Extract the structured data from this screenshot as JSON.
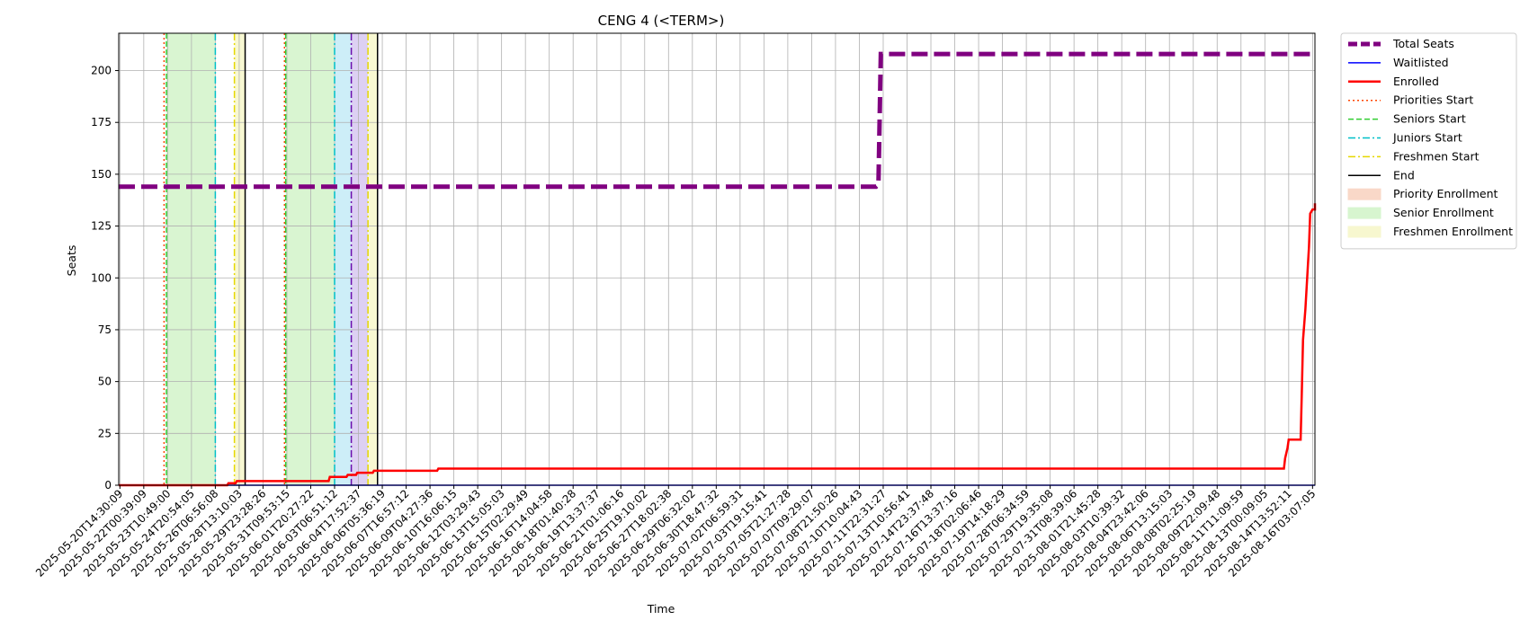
{
  "chart_data": {
    "type": "line",
    "title": "CENG 4 (<TERM>)",
    "xlabel": "Time",
    "ylabel": "Seats",
    "ylim": [
      0,
      218
    ],
    "yticks": [
      0,
      25,
      50,
      75,
      100,
      125,
      150,
      175,
      200
    ],
    "grid": true,
    "legend_position": "outside-right-top",
    "xticks": [
      "2025-05-20T14:30:09",
      "2025-05-22T00:39:09",
      "2025-05-23T10:49:00",
      "2025-05-24T20:54:05",
      "2025-05-26T06:56:08",
      "2025-05-28T13:10:03",
      "2025-05-29T23:28:26",
      "2025-05-31T09:53:15",
      "2025-06-01T20:27:22",
      "2025-06-03T06:51:12",
      "2025-06-04T17:52:37",
      "2025-06-06T05:36:19",
      "2025-06-07T16:57:12",
      "2025-06-09T04:27:36",
      "2025-06-10T16:06:15",
      "2025-06-12T03:29:43",
      "2025-06-13T15:05:03",
      "2025-06-15T02:29:49",
      "2025-06-16T14:04:58",
      "2025-06-18T01:40:28",
      "2025-06-19T13:37:37",
      "2025-06-21T01:06:16",
      "2025-06-25T19:10:02",
      "2025-06-27T18:02:38",
      "2025-06-29T06:32:02",
      "2025-06-30T18:47:32",
      "2025-07-02T06:59:31",
      "2025-07-03T19:15:41",
      "2025-07-05T21:27:28",
      "2025-07-07T09:29:07",
      "2025-07-08T21:50:26",
      "2025-07-10T10:04:43",
      "2025-07-11T22:31:27",
      "2025-07-13T10:56:41",
      "2025-07-14T23:37:48",
      "2025-07-16T13:37:16",
      "2025-07-18T02:06:46",
      "2025-07-19T14:18:29",
      "2025-07-28T06:34:59",
      "2025-07-29T19:35:08",
      "2025-07-31T08:39:06",
      "2025-08-01T21:45:28",
      "2025-08-03T10:39:32",
      "2025-08-04T23:42:06",
      "2025-08-06T13:15:03",
      "2025-08-08T02:25:19",
      "2025-08-09T22:09:48",
      "2025-08-11T11:09:59",
      "2025-08-13T00:09:05",
      "2025-08-14T13:52:11",
      "2025-08-16T03:07:05"
    ],
    "xrange_index": [
      -0.05,
      50.1
    ],
    "phases": [
      {
        "kind": "senior",
        "start": 1.95,
        "end": 4.0
      },
      {
        "kind": "freshmen",
        "start": 4.8,
        "end": 5.25
      },
      {
        "kind": "senior",
        "start": 6.95,
        "end": 9.0
      },
      {
        "kind": "junior",
        "start": 9.0,
        "end": 9.7
      },
      {
        "kind": "sophomore",
        "start": 9.7,
        "end": 10.4
      },
      {
        "kind": "freshmen",
        "start": 10.4,
        "end": 10.8
      }
    ],
    "markers": [
      {
        "kind": "priorities",
        "x": 1.85
      },
      {
        "kind": "seniors",
        "x": 1.95
      },
      {
        "kind": "juniors",
        "x": 4.0
      },
      {
        "kind": "freshmen",
        "x": 4.8
      },
      {
        "kind": "end",
        "x": 5.25
      },
      {
        "kind": "priorities",
        "x": 6.9
      },
      {
        "kind": "seniors",
        "x": 6.95
      },
      {
        "kind": "juniors",
        "x": 9.0
      },
      {
        "kind": "sophomores",
        "x": 9.7
      },
      {
        "kind": "freshmen",
        "x": 10.4
      },
      {
        "kind": "end",
        "x": 10.8
      }
    ],
    "series": [
      {
        "name": "Total Seats",
        "color": "#800080",
        "points": [
          [
            -0.05,
            144
          ],
          [
            31.7,
            144
          ],
          [
            31.8,
            145
          ],
          [
            31.9,
            208
          ],
          [
            50.1,
            208
          ]
        ]
      },
      {
        "name": "Waitlisted",
        "color": "#0000ff",
        "points": [
          [
            -0.05,
            0
          ],
          [
            50.1,
            0
          ]
        ]
      },
      {
        "name": "Enrolled",
        "color": "#ff0000",
        "points": [
          [
            -0.05,
            0
          ],
          [
            4.5,
            0
          ],
          [
            4.55,
            1
          ],
          [
            4.85,
            1
          ],
          [
            4.9,
            2
          ],
          [
            8.75,
            2
          ],
          [
            8.8,
            4
          ],
          [
            9.5,
            4
          ],
          [
            9.55,
            5
          ],
          [
            9.9,
            5
          ],
          [
            9.95,
            6
          ],
          [
            10.6,
            6
          ],
          [
            10.65,
            7
          ],
          [
            13.3,
            7
          ],
          [
            13.35,
            8
          ],
          [
            48.8,
            8
          ],
          [
            48.85,
            13
          ],
          [
            48.95,
            18
          ],
          [
            49.0,
            22
          ],
          [
            49.5,
            22
          ],
          [
            49.55,
            45
          ],
          [
            49.6,
            70
          ],
          [
            49.7,
            85
          ],
          [
            49.8,
            105
          ],
          [
            49.85,
            115
          ],
          [
            49.9,
            131
          ],
          [
            50.0,
            133
          ],
          [
            50.2,
            133
          ],
          [
            50.25,
            134
          ],
          [
            50.5,
            134
          ],
          [
            50.55,
            136
          ],
          [
            50.1,
            136
          ]
        ]
      }
    ],
    "legend": [
      {
        "label": "Total Seats",
        "style": "line-thick-dashed",
        "color": "#800080"
      },
      {
        "label": "Waitlisted",
        "style": "line",
        "color": "#0000ff"
      },
      {
        "label": "Enrolled",
        "style": "line-thick",
        "color": "#ff0000"
      },
      {
        "label": "Priorities Start",
        "style": "dotted",
        "color": "#ff4500"
      },
      {
        "label": "Seniors Start",
        "style": "dashed",
        "color": "#32cd32"
      },
      {
        "label": "Juniors Start",
        "style": "dashdot",
        "color": "#00bfc8"
      },
      {
        "label": "Freshmen Start",
        "style": "dashdot",
        "color": "#e6d800"
      },
      {
        "label": "End",
        "style": "line",
        "color": "#000000"
      },
      {
        "label": "Priority Enrollment",
        "style": "patch",
        "color": "#f9d8c8"
      },
      {
        "label": "Senior Enrollment",
        "style": "patch",
        "color": "#d7f5cf"
      },
      {
        "label": "Freshmen Enrollment",
        "style": "patch",
        "color": "#f7f7cf"
      }
    ],
    "phase_colors": {
      "senior": "#d9f5d1",
      "junior": "#cdeef8",
      "sophomore": "#ddd0f3",
      "freshmen": "#f8f8d2"
    },
    "marker_colors": {
      "priorities": "#ff4500",
      "seniors": "#32cd32",
      "juniors": "#00bfc8",
      "sophomores": "#6a0dad",
      "freshmen": "#e6d800",
      "end": "#000000"
    }
  }
}
